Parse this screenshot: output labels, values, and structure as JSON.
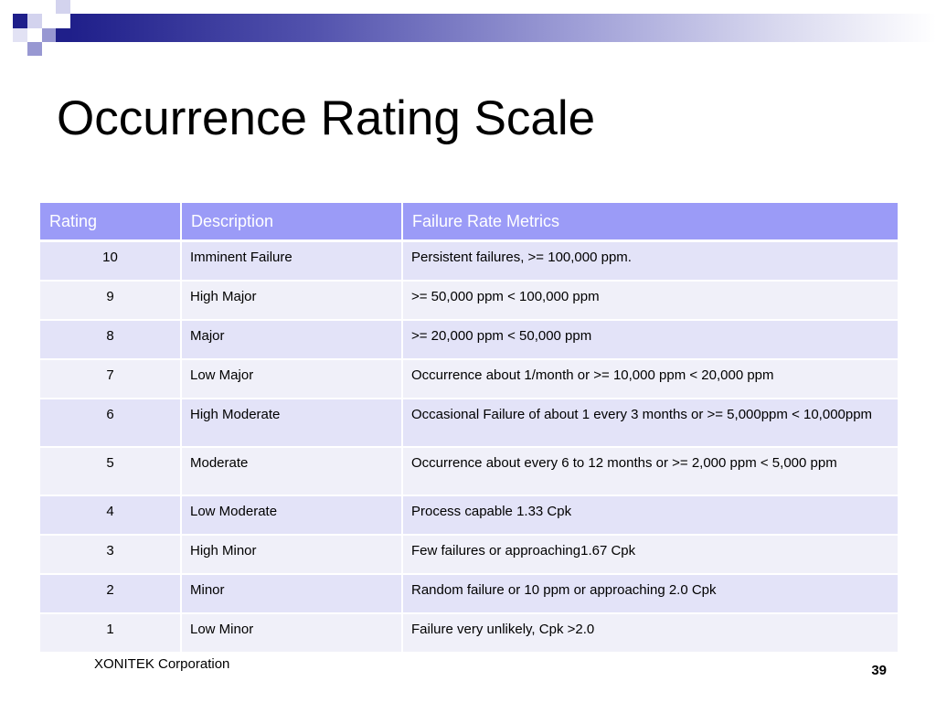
{
  "slide": {
    "title": "Occurrence Rating Scale",
    "footer": "XONITEK Corporation",
    "page_number": "39",
    "colors": {
      "header_bg": "#9b9bf7",
      "row_bg": "#e3e3f8",
      "row_alt_bg": "#f0f0f9",
      "accent_dark": "#1f1f8a"
    }
  },
  "table": {
    "headers": [
      "Rating",
      "Description",
      "Failure Rate Metrics"
    ],
    "rows": [
      {
        "rating": "10",
        "description": "Imminent  Failure",
        "metric": "Persistent failures,  >=  100,000 ppm."
      },
      {
        "rating": "9",
        "description": "High Major",
        "metric": ">= 50,000 ppm < 100,000 ppm"
      },
      {
        "rating": "8",
        "description": "Major",
        "metric": ">=  20,000 ppm < 50,000 ppm"
      },
      {
        "rating": "7",
        "description": "Low Major",
        "metric": "Occurrence about 1/month or  >= 10,000 ppm < 20,000 ppm"
      },
      {
        "rating": "6",
        "description": "High Moderate",
        "metric": "Occasional Failure of about 1 every 3 months or >= 5,000ppm < 10,000ppm"
      },
      {
        "rating": "5",
        "description": "Moderate",
        "metric": "Occurrence about every 6  to 12 months or  >= 2,000 ppm < 5,000 ppm"
      },
      {
        "rating": "4",
        "description": "Low Moderate",
        "metric": "Process capable 1.33 Cpk"
      },
      {
        "rating": "3",
        "description": "High Minor",
        "metric": "Few failures or  approaching1.67 Cpk"
      },
      {
        "rating": "2",
        "description": "Minor",
        "metric": "Random failure or 10 ppm or approaching 2.0 Cpk"
      },
      {
        "rating": "1",
        "description": "Low Minor",
        "metric": "Failure very unlikely, Cpk  >2.0"
      }
    ]
  }
}
